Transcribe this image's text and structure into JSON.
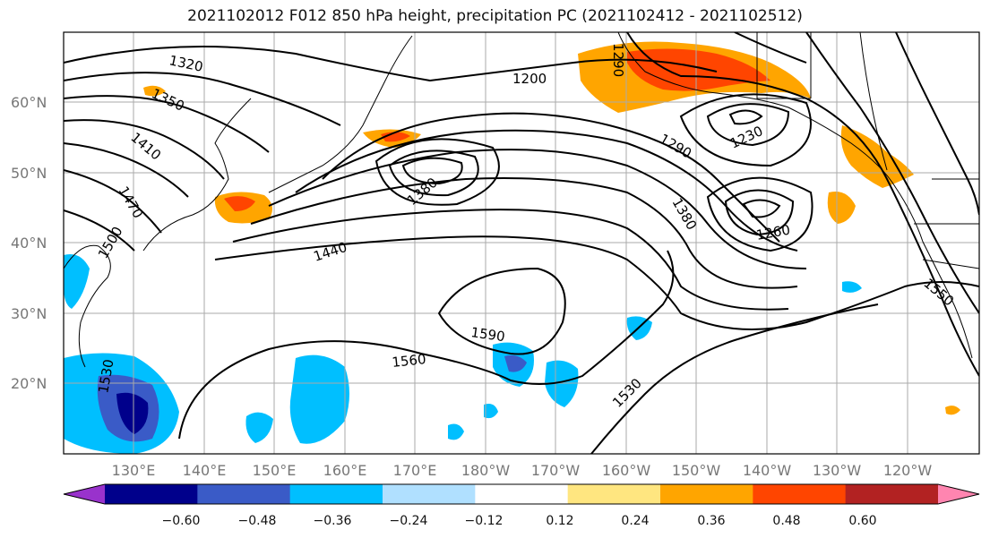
{
  "title": "2021102012 F012 850 hPa height, precipitation PC (2021102412 - 2021102512)",
  "map": {
    "lat_labels": [
      "60°N",
      "50°N",
      "40°N",
      "30°N",
      "20°N"
    ],
    "lon_labels": [
      "130°E",
      "140°E",
      "150°E",
      "160°E",
      "170°E",
      "180°W",
      "170°W",
      "160°W",
      "150°W",
      "140°W",
      "130°W",
      "120°W"
    ],
    "contour_labels": [
      "1320",
      "1350",
      "1410",
      "1470",
      "1500",
      "1200",
      "1290",
      "1230",
      "1380",
      "1260",
      "1440",
      "1590",
      "1560",
      "1530",
      "1550",
      "1530",
      "1380",
      "1290"
    ]
  },
  "colorbar": {
    "ticks": [
      "−0.60",
      "−0.48",
      "−0.36",
      "−0.24",
      "−0.12",
      "0.12",
      "0.24",
      "0.36",
      "0.48",
      "0.60"
    ],
    "colors": [
      "#9932cc",
      "#00008b",
      "#3a5bc7",
      "#00bfff",
      "#b0e0ff",
      "#ffffff",
      "#ffe680",
      "#ffa500",
      "#ff4500",
      "#b22222",
      "#ff85b0"
    ]
  }
}
